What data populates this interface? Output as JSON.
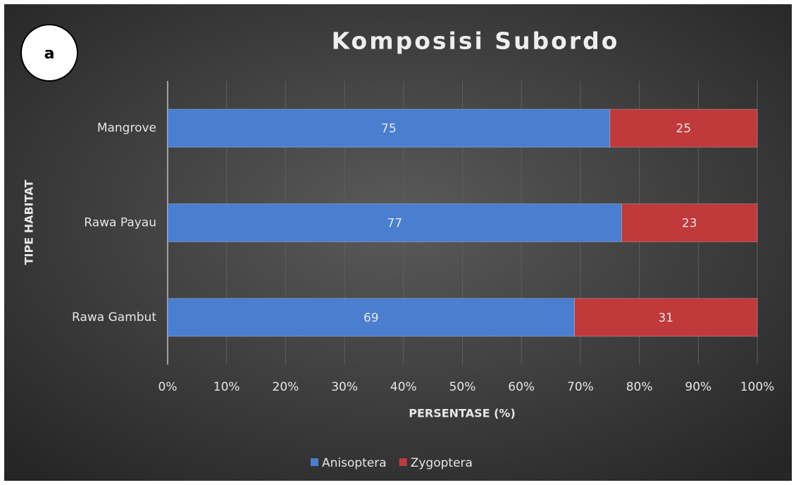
{
  "chart_data": {
    "type": "bar",
    "orientation": "horizontal",
    "stacked": true,
    "title": "Komposisi Subordo",
    "annotation": "a",
    "x_label": "PERSENTASE (%)",
    "y_label": "TIPE HABITAT",
    "categories": [
      "Mangrove",
      "Rawa Payau",
      "Rawa Gambut"
    ],
    "series": [
      {
        "name": "Anisoptera",
        "color": "#4a7fd0",
        "values": [
          75,
          77,
          69
        ]
      },
      {
        "name": "Zygoptera",
        "color": "#c0393b",
        "values": [
          25,
          23,
          31
        ]
      }
    ],
    "xlim": [
      0,
      100
    ],
    "xticks": [
      {
        "value": 0,
        "label": "0%"
      },
      {
        "value": 10,
        "label": "10%"
      },
      {
        "value": 20,
        "label": "20%"
      },
      {
        "value": 30,
        "label": "30%"
      },
      {
        "value": 40,
        "label": "40%"
      },
      {
        "value": 50,
        "label": "50%"
      },
      {
        "value": 60,
        "label": "60%"
      },
      {
        "value": 70,
        "label": "70%"
      },
      {
        "value": 80,
        "label": "80%"
      },
      {
        "value": 90,
        "label": "90%"
      },
      {
        "value": 100,
        "label": "100%"
      }
    ],
    "grid": true,
    "legend": "bottom"
  }
}
